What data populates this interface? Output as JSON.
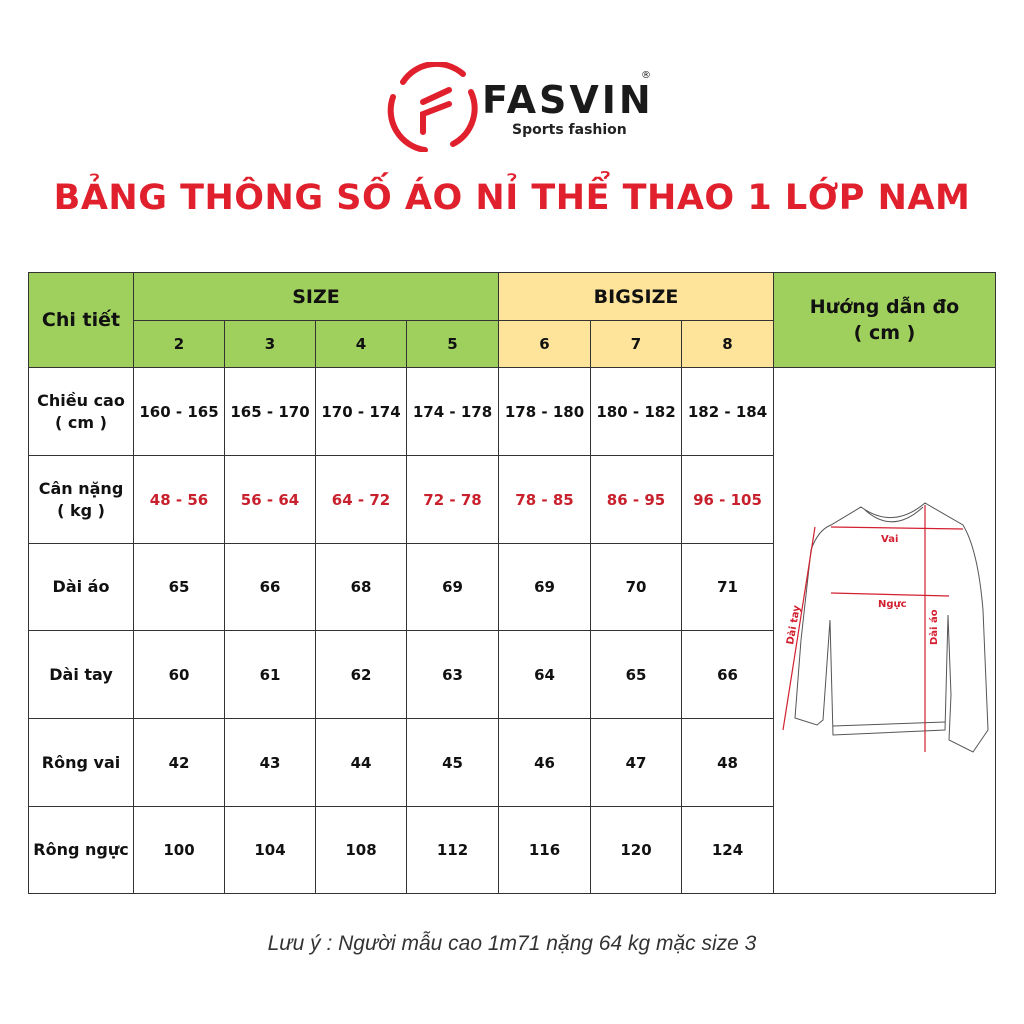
{
  "brand": {
    "name": "FASVIN",
    "registered": "®",
    "tagline": "Sports fashion",
    "logo_color": "#e0212d"
  },
  "title": "BẢNG THÔNG SỐ ÁO NỈ THỂ THAO 1 LỚP NAM",
  "table": {
    "detail_header": "Chi tiết",
    "size_group": "SIZE",
    "bigsize_group": "BIGSIZE",
    "guide_header": "Hướng dẫn đo",
    "guide_unit": "( cm )",
    "sizes": [
      "2",
      "3",
      "4",
      "5"
    ],
    "bigsizes": [
      "6",
      "7",
      "8"
    ],
    "rows": [
      {
        "label": "Chiều cao",
        "unit": "( cm )",
        "values": [
          "160 - 165",
          "165 - 170",
          "170 - 174",
          "174 - 178",
          "178 - 180",
          "180 - 182",
          "182 - 184"
        ]
      },
      {
        "label": "Cân nặng",
        "unit": "( kg )",
        "values": [
          "48 - 56",
          "56 - 64",
          "64 - 72",
          "72 - 78",
          "78 - 85",
          "86 - 95",
          "96 - 105"
        ]
      },
      {
        "label": "Dài áo",
        "unit": "",
        "values": [
          "65",
          "66",
          "68",
          "69",
          "69",
          "70",
          "71"
        ]
      },
      {
        "label": "Dài tay",
        "unit": "",
        "values": [
          "60",
          "61",
          "62",
          "63",
          "64",
          "65",
          "66"
        ]
      },
      {
        "label": "Rông vai",
        "unit": "",
        "values": [
          "42",
          "43",
          "44",
          "45",
          "46",
          "47",
          "48"
        ]
      },
      {
        "label": "Rông ngực",
        "unit": "",
        "values": [
          "100",
          "104",
          "108",
          "112",
          "116",
          "120",
          "124"
        ]
      }
    ],
    "colors": {
      "size_header": "#9fcf5c",
      "bigsize_header": "#fde49a",
      "weight_text": "#c8202d"
    }
  },
  "diagram": {
    "shoulder": "Vai",
    "chest": "Ngực",
    "sleeve": "Dài tay",
    "length": "Dài áo"
  },
  "note": "Lưu ý : Người mẫu cao 1m71 nặng 64 kg mặc size 3"
}
